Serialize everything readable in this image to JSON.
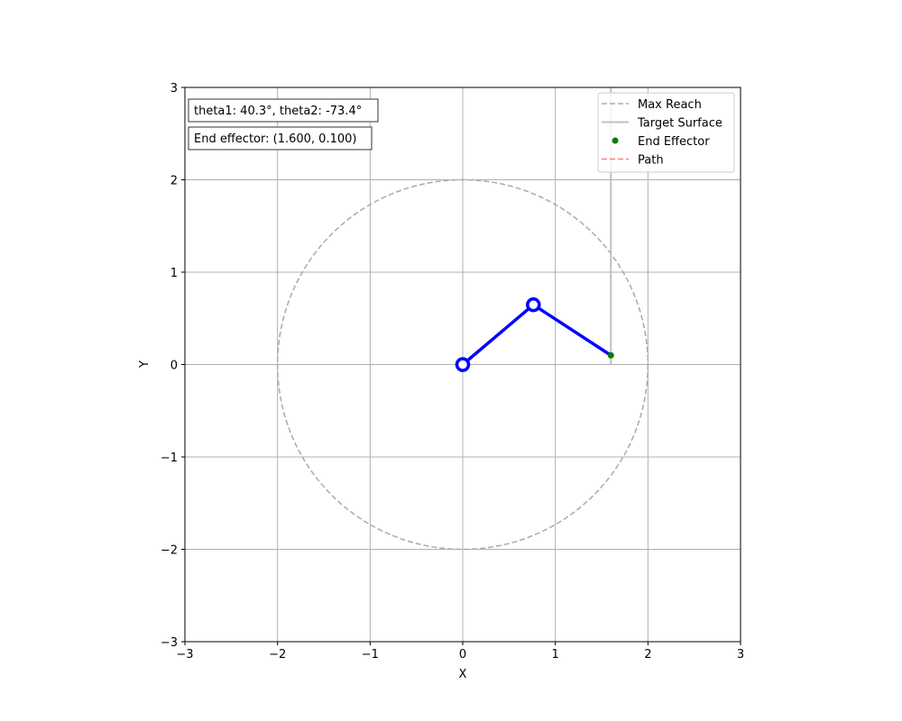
{
  "chart_data": {
    "type": "line",
    "xlabel": "X",
    "ylabel": "Y",
    "xlim": [
      -3,
      3
    ],
    "ylim": [
      -3,
      3
    ],
    "xticks": [
      -3,
      -2,
      -1,
      0,
      1,
      2,
      3
    ],
    "yticks": [
      -3,
      -2,
      -1,
      0,
      1,
      2,
      3
    ],
    "xtick_labels": [
      "−3",
      "−2",
      "−1",
      "0",
      "1",
      "2",
      "3"
    ],
    "ytick_labels": [
      "−3",
      "−2",
      "−1",
      "0",
      "1",
      "2",
      "3"
    ],
    "grid": true,
    "legend_position": "top-right",
    "max_reach": {
      "center": [
        0,
        0
      ],
      "radius": 2,
      "color": "#aaaaaa"
    },
    "target_surface": {
      "x": [
        1.6,
        1.6
      ],
      "y": [
        0,
        3
      ],
      "color": "#c0c0c0"
    },
    "arm": {
      "x": [
        0,
        0.763,
        1.6
      ],
      "y": [
        0,
        0.647,
        0.1
      ],
      "color": "#0000ff"
    },
    "end_effector": {
      "x": 1.6,
      "y": 0.1,
      "color": "#008000"
    },
    "path": {
      "x": [],
      "y": [],
      "color": "#ff7f7f"
    },
    "legend": [
      {
        "label": "Max Reach",
        "style": "dashed",
        "color": "#aaaaaa"
      },
      {
        "label": "Target Surface",
        "style": "solid",
        "color": "#c0c0c0"
      },
      {
        "label": "End Effector",
        "style": "marker",
        "color": "#008000"
      },
      {
        "label": "Path",
        "style": "dashed",
        "color": "#ff7f7f"
      }
    ]
  },
  "annotations": {
    "angles_text": "theta1: 40.3°, theta2: -73.4°",
    "effector_text": "End effector: (1.600, 0.100)"
  }
}
